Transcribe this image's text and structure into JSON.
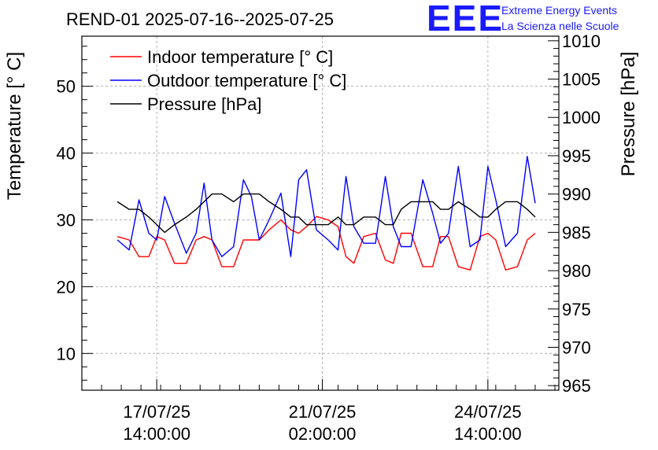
{
  "title": "REND-01 2025-07-16--2025-07-25",
  "logo": {
    "mark": "EEE",
    "line1": "Extreme Energy Events",
    "line2": "La Scienza nelle Scuole"
  },
  "chart_data": {
    "type": "line",
    "title": "REND-01 2025-07-16--2025-07-25",
    "ylabel": "Temperature [° C]",
    "y2label": "Pressure [hPa]",
    "ylim": [
      4.5,
      57.5
    ],
    "y2lim": [
      964.4,
      1010.6
    ],
    "xlim": [
      "2025-07-16T00:00:00",
      "2025-07-26T02:00:00"
    ],
    "y_ticks": [
      10,
      20,
      30,
      40,
      50
    ],
    "y2_ticks": [
      965,
      970,
      975,
      980,
      985,
      990,
      995,
      1000,
      1005,
      1010
    ],
    "x_ticks": [
      {
        "date": "17/07/25",
        "time": "14:00:00",
        "t": "2025-07-17T14:00:00"
      },
      {
        "date": "21/07/25",
        "time": "02:00:00",
        "t": "2025-07-21T02:00:00"
      },
      {
        "date": "24/07/25",
        "time": "14:00:00",
        "t": "2025-07-24T14:00:00"
      }
    ],
    "grid": true,
    "legend_position": "top-left",
    "series": [
      {
        "name": "Indoor temperature [° C]",
        "color": "#ff0000",
        "axis": "left",
        "x": [
          "2025-07-16T18:00",
          "2025-07-17T00:00",
          "2025-07-17T05:00",
          "2025-07-17T10:00",
          "2025-07-17T14:00",
          "2025-07-17T18:00",
          "2025-07-17T23:00",
          "2025-07-18T05:00",
          "2025-07-18T10:00",
          "2025-07-18T14:00",
          "2025-07-18T18:00",
          "2025-07-18T23:00",
          "2025-07-19T05:00",
          "2025-07-19T10:00",
          "2025-07-19T14:00",
          "2025-07-19T18:00",
          "2025-07-19T23:00",
          "2025-07-20T05:00",
          "2025-07-20T10:00",
          "2025-07-20T14:00",
          "2025-07-20T18:00",
          "2025-07-20T23:00",
          "2025-07-21T05:00",
          "2025-07-21T10:00",
          "2025-07-21T14:00",
          "2025-07-21T18:00",
          "2025-07-21T23:00",
          "2025-07-22T05:00",
          "2025-07-22T10:00",
          "2025-07-22T14:00",
          "2025-07-22T18:00",
          "2025-07-22T23:00",
          "2025-07-23T05:00",
          "2025-07-23T10:00",
          "2025-07-23T14:00",
          "2025-07-23T18:00",
          "2025-07-23T23:00",
          "2025-07-24T05:00",
          "2025-07-24T10:00",
          "2025-07-24T14:00",
          "2025-07-24T18:00",
          "2025-07-24T23:00",
          "2025-07-25T05:00",
          "2025-07-25T10:00",
          "2025-07-25T14:00"
        ],
        "y": [
          27.5,
          27,
          24.5,
          24.5,
          27.5,
          27,
          23.5,
          23.5,
          27,
          27.5,
          27,
          23,
          23,
          27,
          27,
          27,
          28.5,
          30,
          28.5,
          28,
          29,
          30.5,
          30,
          29,
          24.5,
          23.5,
          27.5,
          28,
          24,
          23.5,
          28,
          28,
          23,
          23,
          27.5,
          27.5,
          23,
          22.5,
          27.5,
          28,
          27,
          22.5,
          23,
          27,
          28
        ]
      },
      {
        "name": "Outdoor temperature [° C]",
        "color": "#0000ff",
        "axis": "left",
        "x": [
          "2025-07-16T18:00",
          "2025-07-17T00:00",
          "2025-07-17T05:00",
          "2025-07-17T10:00",
          "2025-07-17T14:00",
          "2025-07-17T18:00",
          "2025-07-17T23:00",
          "2025-07-18T05:00",
          "2025-07-18T10:00",
          "2025-07-18T14:00",
          "2025-07-18T18:00",
          "2025-07-18T23:00",
          "2025-07-19T05:00",
          "2025-07-19T10:00",
          "2025-07-19T14:00",
          "2025-07-19T18:00",
          "2025-07-19T23:00",
          "2025-07-20T05:00",
          "2025-07-20T10:00",
          "2025-07-20T14:00",
          "2025-07-20T18:00",
          "2025-07-20T23:00",
          "2025-07-21T05:00",
          "2025-07-21T10:00",
          "2025-07-21T14:00",
          "2025-07-21T18:00",
          "2025-07-21T23:00",
          "2025-07-22T05:00",
          "2025-07-22T10:00",
          "2025-07-22T14:00",
          "2025-07-22T18:00",
          "2025-07-22T23:00",
          "2025-07-23T05:00",
          "2025-07-23T10:00",
          "2025-07-23T14:00",
          "2025-07-23T18:00",
          "2025-07-23T23:00",
          "2025-07-24T05:00",
          "2025-07-24T10:00",
          "2025-07-24T14:00",
          "2025-07-24T18:00",
          "2025-07-24T23:00",
          "2025-07-25T05:00",
          "2025-07-25T10:00",
          "2025-07-25T14:00"
        ],
        "y": [
          27,
          25.5,
          33,
          28,
          27,
          33.5,
          29.5,
          25,
          28,
          35.5,
          27,
          24.5,
          26,
          36,
          33.5,
          27,
          30,
          34,
          24.5,
          36,
          37.5,
          28.5,
          27,
          25.5,
          36.5,
          29,
          26.5,
          26.5,
          36.5,
          29,
          26,
          26,
          36,
          31,
          26.5,
          28,
          38,
          26,
          27,
          38,
          33,
          26,
          28,
          39.5,
          32.5
        ]
      },
      {
        "name": "Pressure [hPa]",
        "color": "#000000",
        "axis": "right",
        "x": [
          "2025-07-16T18:00",
          "2025-07-17T00:00",
          "2025-07-17T05:00",
          "2025-07-17T10:00",
          "2025-07-17T14:00",
          "2025-07-17T18:00",
          "2025-07-17T23:00",
          "2025-07-18T05:00",
          "2025-07-18T10:00",
          "2025-07-18T14:00",
          "2025-07-18T18:00",
          "2025-07-18T23:00",
          "2025-07-19T05:00",
          "2025-07-19T10:00",
          "2025-07-19T14:00",
          "2025-07-19T18:00",
          "2025-07-19T23:00",
          "2025-07-20T05:00",
          "2025-07-20T10:00",
          "2025-07-20T14:00",
          "2025-07-20T18:00",
          "2025-07-20T23:00",
          "2025-07-21T05:00",
          "2025-07-21T10:00",
          "2025-07-21T14:00",
          "2025-07-21T18:00",
          "2025-07-21T23:00",
          "2025-07-22T05:00",
          "2025-07-22T10:00",
          "2025-07-22T14:00",
          "2025-07-22T18:00",
          "2025-07-22T23:00",
          "2025-07-23T05:00",
          "2025-07-23T10:00",
          "2025-07-23T14:00",
          "2025-07-23T18:00",
          "2025-07-23T23:00",
          "2025-07-24T05:00",
          "2025-07-24T10:00",
          "2025-07-24T14:00",
          "2025-07-24T18:00",
          "2025-07-24T23:00",
          "2025-07-25T05:00",
          "2025-07-25T10:00",
          "2025-07-25T14:00"
        ],
        "y": [
          989,
          988,
          988,
          987,
          986,
          985,
          986,
          987,
          988,
          989,
          990,
          990,
          989,
          990,
          990,
          990,
          989,
          988,
          987,
          987,
          986,
          986,
          986,
          987,
          986,
          986,
          987,
          987,
          986,
          986,
          988,
          989,
          989,
          989,
          988,
          988,
          989,
          988,
          987,
          987,
          988,
          989,
          989,
          988,
          987
        ]
      }
    ]
  }
}
